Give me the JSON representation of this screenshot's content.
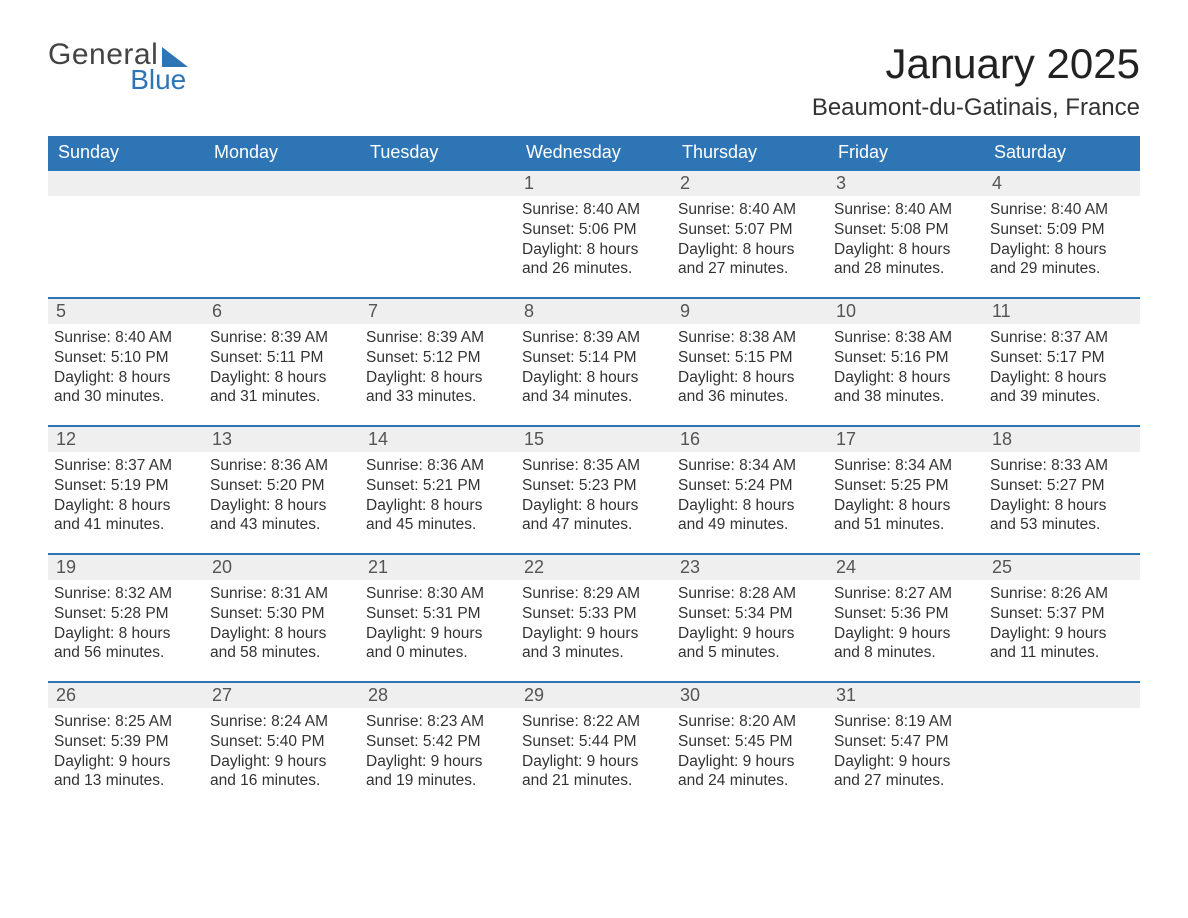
{
  "brand": {
    "word1": "General",
    "word2": "Blue"
  },
  "title": "January 2025",
  "location": "Beaumont-du-Gatinais, France",
  "colors": {
    "header_blue": "#2e75b6",
    "grey_row": "#efefef",
    "text": "#333333",
    "white": "#ffffff"
  },
  "day_headers": [
    "Sunday",
    "Monday",
    "Tuesday",
    "Wednesday",
    "Thursday",
    "Friday",
    "Saturday"
  ],
  "layout": {
    "columns": 7,
    "rows": 5,
    "first_day_column_index": 3,
    "days_in_month": 31
  },
  "days": [
    {
      "n": 1,
      "sunrise": "8:40 AM",
      "sunset": "5:06 PM",
      "dl_h": 8,
      "dl_m": 26
    },
    {
      "n": 2,
      "sunrise": "8:40 AM",
      "sunset": "5:07 PM",
      "dl_h": 8,
      "dl_m": 27
    },
    {
      "n": 3,
      "sunrise": "8:40 AM",
      "sunset": "5:08 PM",
      "dl_h": 8,
      "dl_m": 28
    },
    {
      "n": 4,
      "sunrise": "8:40 AM",
      "sunset": "5:09 PM",
      "dl_h": 8,
      "dl_m": 29
    },
    {
      "n": 5,
      "sunrise": "8:40 AM",
      "sunset": "5:10 PM",
      "dl_h": 8,
      "dl_m": 30
    },
    {
      "n": 6,
      "sunrise": "8:39 AM",
      "sunset": "5:11 PM",
      "dl_h": 8,
      "dl_m": 31
    },
    {
      "n": 7,
      "sunrise": "8:39 AM",
      "sunset": "5:12 PM",
      "dl_h": 8,
      "dl_m": 33
    },
    {
      "n": 8,
      "sunrise": "8:39 AM",
      "sunset": "5:14 PM",
      "dl_h": 8,
      "dl_m": 34
    },
    {
      "n": 9,
      "sunrise": "8:38 AM",
      "sunset": "5:15 PM",
      "dl_h": 8,
      "dl_m": 36
    },
    {
      "n": 10,
      "sunrise": "8:38 AM",
      "sunset": "5:16 PM",
      "dl_h": 8,
      "dl_m": 38
    },
    {
      "n": 11,
      "sunrise": "8:37 AM",
      "sunset": "5:17 PM",
      "dl_h": 8,
      "dl_m": 39
    },
    {
      "n": 12,
      "sunrise": "8:37 AM",
      "sunset": "5:19 PM",
      "dl_h": 8,
      "dl_m": 41
    },
    {
      "n": 13,
      "sunrise": "8:36 AM",
      "sunset": "5:20 PM",
      "dl_h": 8,
      "dl_m": 43
    },
    {
      "n": 14,
      "sunrise": "8:36 AM",
      "sunset": "5:21 PM",
      "dl_h": 8,
      "dl_m": 45
    },
    {
      "n": 15,
      "sunrise": "8:35 AM",
      "sunset": "5:23 PM",
      "dl_h": 8,
      "dl_m": 47
    },
    {
      "n": 16,
      "sunrise": "8:34 AM",
      "sunset": "5:24 PM",
      "dl_h": 8,
      "dl_m": 49
    },
    {
      "n": 17,
      "sunrise": "8:34 AM",
      "sunset": "5:25 PM",
      "dl_h": 8,
      "dl_m": 51
    },
    {
      "n": 18,
      "sunrise": "8:33 AM",
      "sunset": "5:27 PM",
      "dl_h": 8,
      "dl_m": 53
    },
    {
      "n": 19,
      "sunrise": "8:32 AM",
      "sunset": "5:28 PM",
      "dl_h": 8,
      "dl_m": 56
    },
    {
      "n": 20,
      "sunrise": "8:31 AM",
      "sunset": "5:30 PM",
      "dl_h": 8,
      "dl_m": 58
    },
    {
      "n": 21,
      "sunrise": "8:30 AM",
      "sunset": "5:31 PM",
      "dl_h": 9,
      "dl_m": 0
    },
    {
      "n": 22,
      "sunrise": "8:29 AM",
      "sunset": "5:33 PM",
      "dl_h": 9,
      "dl_m": 3
    },
    {
      "n": 23,
      "sunrise": "8:28 AM",
      "sunset": "5:34 PM",
      "dl_h": 9,
      "dl_m": 5
    },
    {
      "n": 24,
      "sunrise": "8:27 AM",
      "sunset": "5:36 PM",
      "dl_h": 9,
      "dl_m": 8
    },
    {
      "n": 25,
      "sunrise": "8:26 AM",
      "sunset": "5:37 PM",
      "dl_h": 9,
      "dl_m": 11
    },
    {
      "n": 26,
      "sunrise": "8:25 AM",
      "sunset": "5:39 PM",
      "dl_h": 9,
      "dl_m": 13
    },
    {
      "n": 27,
      "sunrise": "8:24 AM",
      "sunset": "5:40 PM",
      "dl_h": 9,
      "dl_m": 16
    },
    {
      "n": 28,
      "sunrise": "8:23 AM",
      "sunset": "5:42 PM",
      "dl_h": 9,
      "dl_m": 19
    },
    {
      "n": 29,
      "sunrise": "8:22 AM",
      "sunset": "5:44 PM",
      "dl_h": 9,
      "dl_m": 21
    },
    {
      "n": 30,
      "sunrise": "8:20 AM",
      "sunset": "5:45 PM",
      "dl_h": 9,
      "dl_m": 24
    },
    {
      "n": 31,
      "sunrise": "8:19 AM",
      "sunset": "5:47 PM",
      "dl_h": 9,
      "dl_m": 27
    }
  ],
  "labels": {
    "sunrise_prefix": "Sunrise: ",
    "sunset_prefix": "Sunset: ",
    "daylight_prefix": "Daylight: ",
    "hours_word": " hours",
    "and_word": "and ",
    "minutes_suffix": " minutes."
  }
}
